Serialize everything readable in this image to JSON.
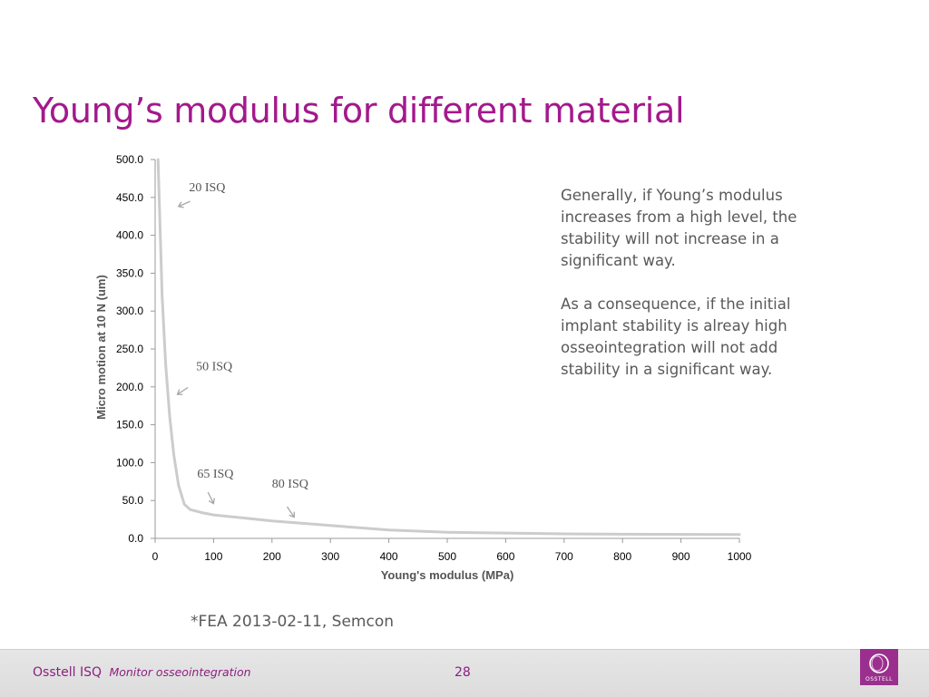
{
  "slide": {
    "title": "Young’s modulus for different material",
    "note_paragraph_1": "Generally, if Young’s modulus increases from a high level, the stability will not increase in a significant way.",
    "note_paragraph_2": "As a consequence, if the initial implant stability is alreay high osseointegration will not add stability in a significant way.",
    "footnote": "*FEA 2013-02-11, Semcon"
  },
  "footer": {
    "brand": "Osstell ISQ",
    "tagline": "Monitor osseointegration",
    "page_number": "28",
    "logo_text": "OSSTELL"
  },
  "chart_data": {
    "type": "line",
    "xlabel": "Young's modulus (MPa)",
    "ylabel": "Micro motion at 10 N (um)",
    "xlim": [
      0,
      1000
    ],
    "ylim": [
      0,
      500
    ],
    "x_ticks": [
      "0",
      "100",
      "200",
      "300",
      "400",
      "500",
      "600",
      "700",
      "800",
      "900",
      "1000"
    ],
    "y_ticks": [
      "0.0",
      "50.0",
      "100.0",
      "150.0",
      "200.0",
      "250.0",
      "300.0",
      "350.0",
      "400.0",
      "450.0",
      "500.0"
    ],
    "grid": false,
    "legend": "none",
    "series": [
      {
        "color": "#cccccc",
        "x": [
          5,
          8,
          12,
          18,
          25,
          32,
          40,
          50,
          60,
          80,
          100,
          150,
          200,
          300,
          400,
          500,
          600,
          700,
          800,
          1000
        ],
        "y": [
          500,
          420,
          320,
          230,
          160,
          110,
          70,
          45,
          38,
          34,
          31,
          27,
          23,
          17,
          11,
          8,
          7,
          6,
          5.5,
          5
        ]
      }
    ],
    "annotations": [
      {
        "text": "20 ISQ",
        "x": 58,
        "y": 458,
        "arrow_to": [
          40,
          438
        ]
      },
      {
        "text": "50 ISQ",
        "x": 70,
        "y": 222,
        "arrow_to": [
          38,
          190
        ]
      },
      {
        "text": "65 ISQ",
        "x": 72,
        "y": 80,
        "arrow_to": [
          100,
          46
        ]
      },
      {
        "text": "80 ISQ",
        "x": 200,
        "y": 67,
        "arrow_to": [
          238,
          28
        ]
      }
    ]
  }
}
